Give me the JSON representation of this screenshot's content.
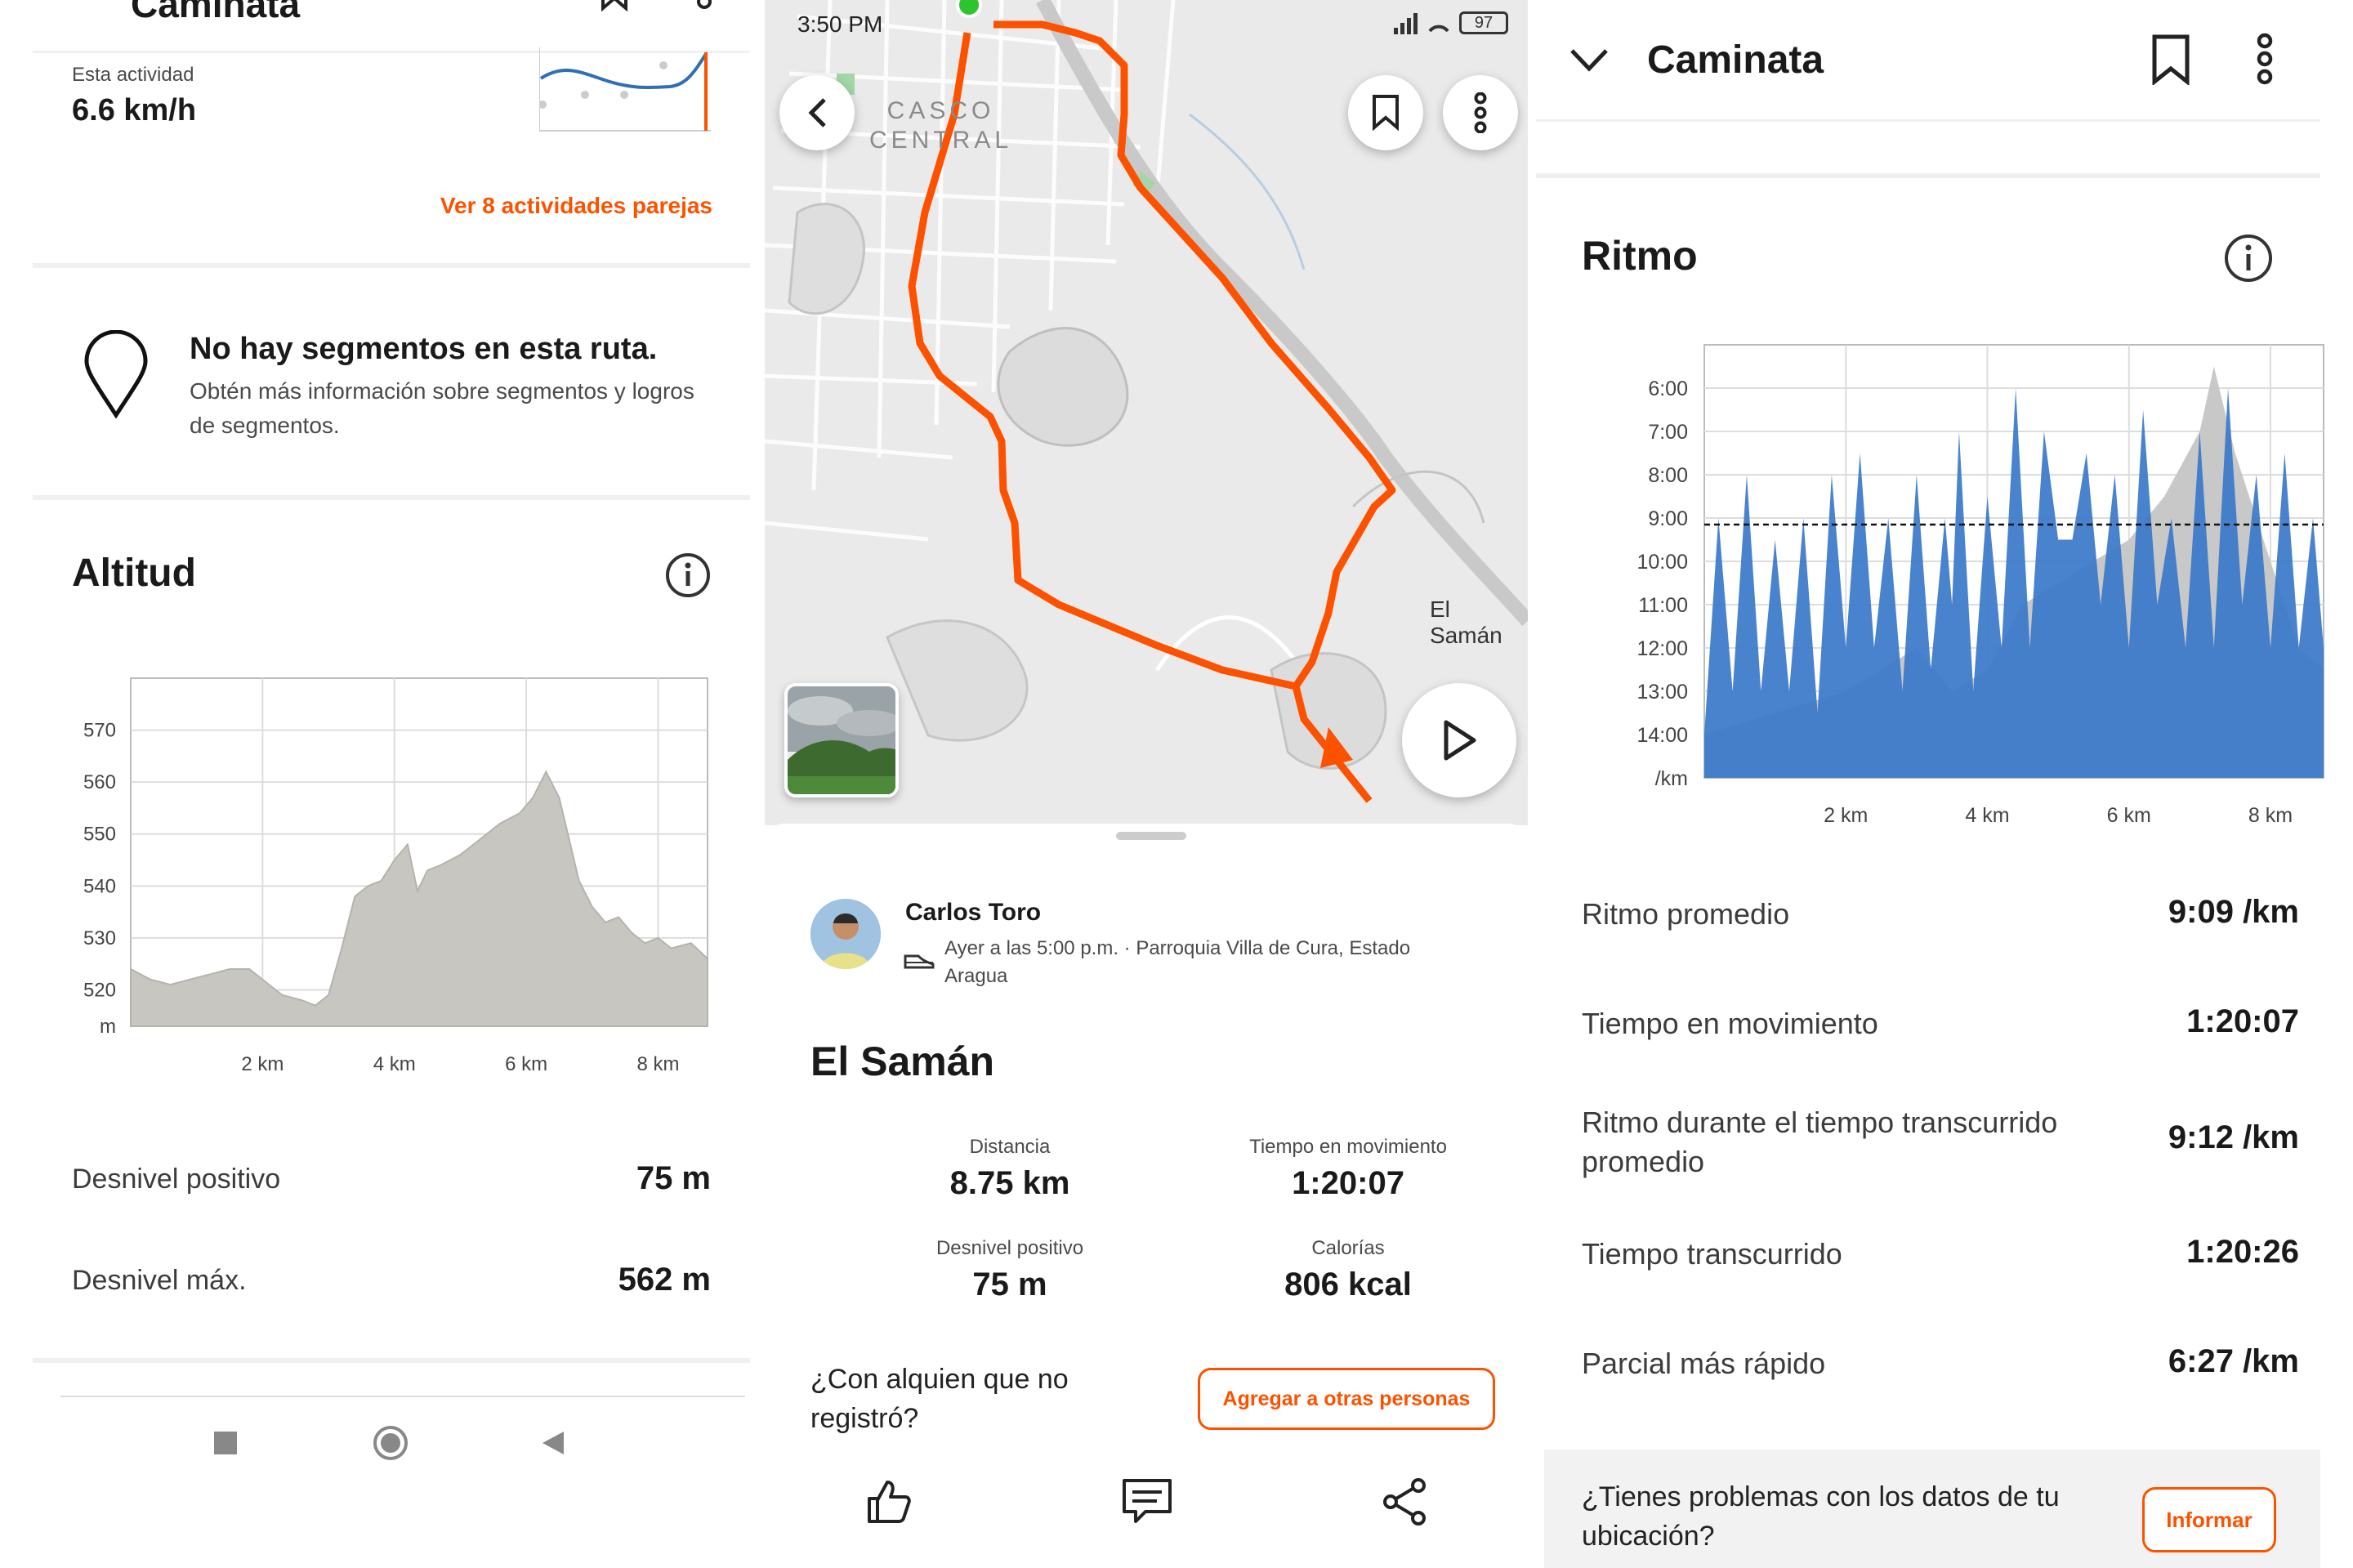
{
  "left": {
    "header_title": "Caminata",
    "this_activity_label": "Esta actividad",
    "this_activity_value": "6.6 km/h",
    "similar_link": "Ver 8 actividades parejas",
    "segments_title": "No hay segmentos en esta ruta.",
    "segments_desc": "Obtén más información sobre segmentos y logros de segmentos.",
    "altitude_title": "Altitud",
    "stats": [
      {
        "label": "Desnivel positivo",
        "value": "75 m"
      },
      {
        "label": "Desnivel máx.",
        "value": "562 m"
      }
    ]
  },
  "middle": {
    "status_time": "3:50 PM",
    "battery": "97",
    "map_label_casco": "CASCO\nCENTRAL",
    "map_label_place": "El Samán",
    "athlete_name": "Carlos Toro",
    "activity_meta": "Ayer a las 5:00 p.m. · Parroquia Villa de Cura, Estado Aragua",
    "activity_title": "El Samán",
    "stats": [
      {
        "label": "Distancia",
        "value": "8.75 km"
      },
      {
        "label": "Tiempo en movimiento",
        "value": "1:20:07"
      },
      {
        "label": "Desnivel positivo",
        "value": "75 m"
      },
      {
        "label": "Calorías",
        "value": "806 kcal"
      }
    ],
    "tag_prompt": "¿Con alquien que no registró?",
    "tag_button": "Agregar a otras personas"
  },
  "right": {
    "header_title": "Caminata",
    "pace_title": "Ritmo",
    "stats": [
      {
        "label": "Ritmo promedio",
        "value": "9:09 /km"
      },
      {
        "label": "Tiempo en movimiento",
        "value": "1:20:07"
      },
      {
        "label": "Ritmo durante el tiempo transcurrido promedio",
        "value": "9:12 /km"
      },
      {
        "label": "Tiempo transcurrido",
        "value": "1:20:26"
      },
      {
        "label": "Parcial más rápido",
        "value": "6:27 /km"
      }
    ],
    "report_prompt": "¿Tienes problemas con los datos de tu ubicación?",
    "report_button": "Informar"
  },
  "chart_data": [
    {
      "type": "area",
      "xlabel": "",
      "ylabel": "m",
      "x_ticks": [
        "2 km",
        "4 km",
        "6 km",
        "8 km"
      ],
      "y_ticks": [
        "570",
        "560",
        "550",
        "540",
        "530",
        "520"
      ],
      "ylim": [
        513,
        580
      ],
      "xlim": [
        0,
        8.75
      ],
      "color": "#c8c6c1",
      "x": [
        0,
        0.3,
        0.6,
        0.9,
        1.2,
        1.5,
        1.8,
        2.0,
        2.3,
        2.6,
        2.8,
        3.0,
        3.2,
        3.4,
        3.6,
        3.8,
        4.0,
        4.2,
        4.35,
        4.5,
        4.7,
        5.0,
        5.3,
        5.6,
        5.9,
        6.1,
        6.3,
        6.5,
        6.65,
        6.8,
        7.0,
        7.2,
        7.4,
        7.6,
        7.8,
        8.0,
        8.2,
        8.5,
        8.75
      ],
      "y": [
        524,
        522,
        521,
        522,
        523,
        524,
        524,
        522,
        519,
        518,
        517,
        519,
        528,
        538,
        540,
        541,
        545,
        548,
        539,
        543,
        544,
        546,
        549,
        552,
        554,
        557,
        562,
        557,
        549,
        541,
        536,
        533,
        534,
        531,
        529,
        530,
        528,
        529,
        526
      ]
    },
    {
      "type": "area",
      "xlabel": "",
      "ylabel": "/km",
      "x_ticks": [
        "2 km",
        "4 km",
        "6 km",
        "8 km"
      ],
      "y_ticks": [
        "6:00",
        "7:00",
        "8:00",
        "9:00",
        "10:00",
        "11:00",
        "12:00",
        "13:00",
        "14:00"
      ],
      "ylim_minutes": [
        5,
        15
      ],
      "average_pace": "9:09",
      "series": [
        {
          "color": "#3a78c9",
          "x": [
            0,
            0.2,
            0.4,
            0.6,
            0.8,
            1.0,
            1.2,
            1.4,
            1.6,
            1.8,
            2.0,
            2.2,
            2.4,
            2.6,
            2.8,
            3.0,
            3.2,
            3.4,
            3.5,
            3.6,
            3.8,
            4.0,
            4.2,
            4.4,
            4.6,
            4.8,
            5.0,
            5.2,
            5.4,
            5.6,
            5.8,
            6.0,
            6.2,
            6.4,
            6.6,
            6.8,
            7.0,
            7.2,
            7.4,
            7.6,
            7.8,
            8.0,
            8.2,
            8.4,
            8.6,
            8.75
          ],
          "y": [
            14,
            9,
            13,
            8,
            13,
            9.5,
            13,
            9,
            13.5,
            8,
            12,
            7.5,
            12,
            9,
            13,
            8,
            12.5,
            9,
            11,
            7,
            13,
            8.5,
            12,
            6,
            12,
            7,
            9.5,
            9.5,
            7.5,
            11,
            8,
            12,
            6.5,
            11,
            9,
            12,
            7,
            12,
            6,
            11,
            8,
            12,
            7.5,
            12,
            9,
            12
          ]
        },
        {
          "color": "#c8c8c8",
          "x": [
            0,
            1.0,
            2.0,
            3.0,
            3.5,
            4.0,
            4.5,
            5.0,
            5.5,
            6.0,
            6.5,
            7.0,
            7.2,
            7.5,
            8.0,
            8.4,
            8.75
          ],
          "y": [
            14,
            13.5,
            13,
            12,
            13,
            12.5,
            11,
            10.5,
            10,
            9.5,
            8.5,
            7,
            5.5,
            7.5,
            10,
            12,
            12.5
          ]
        }
      ]
    }
  ]
}
